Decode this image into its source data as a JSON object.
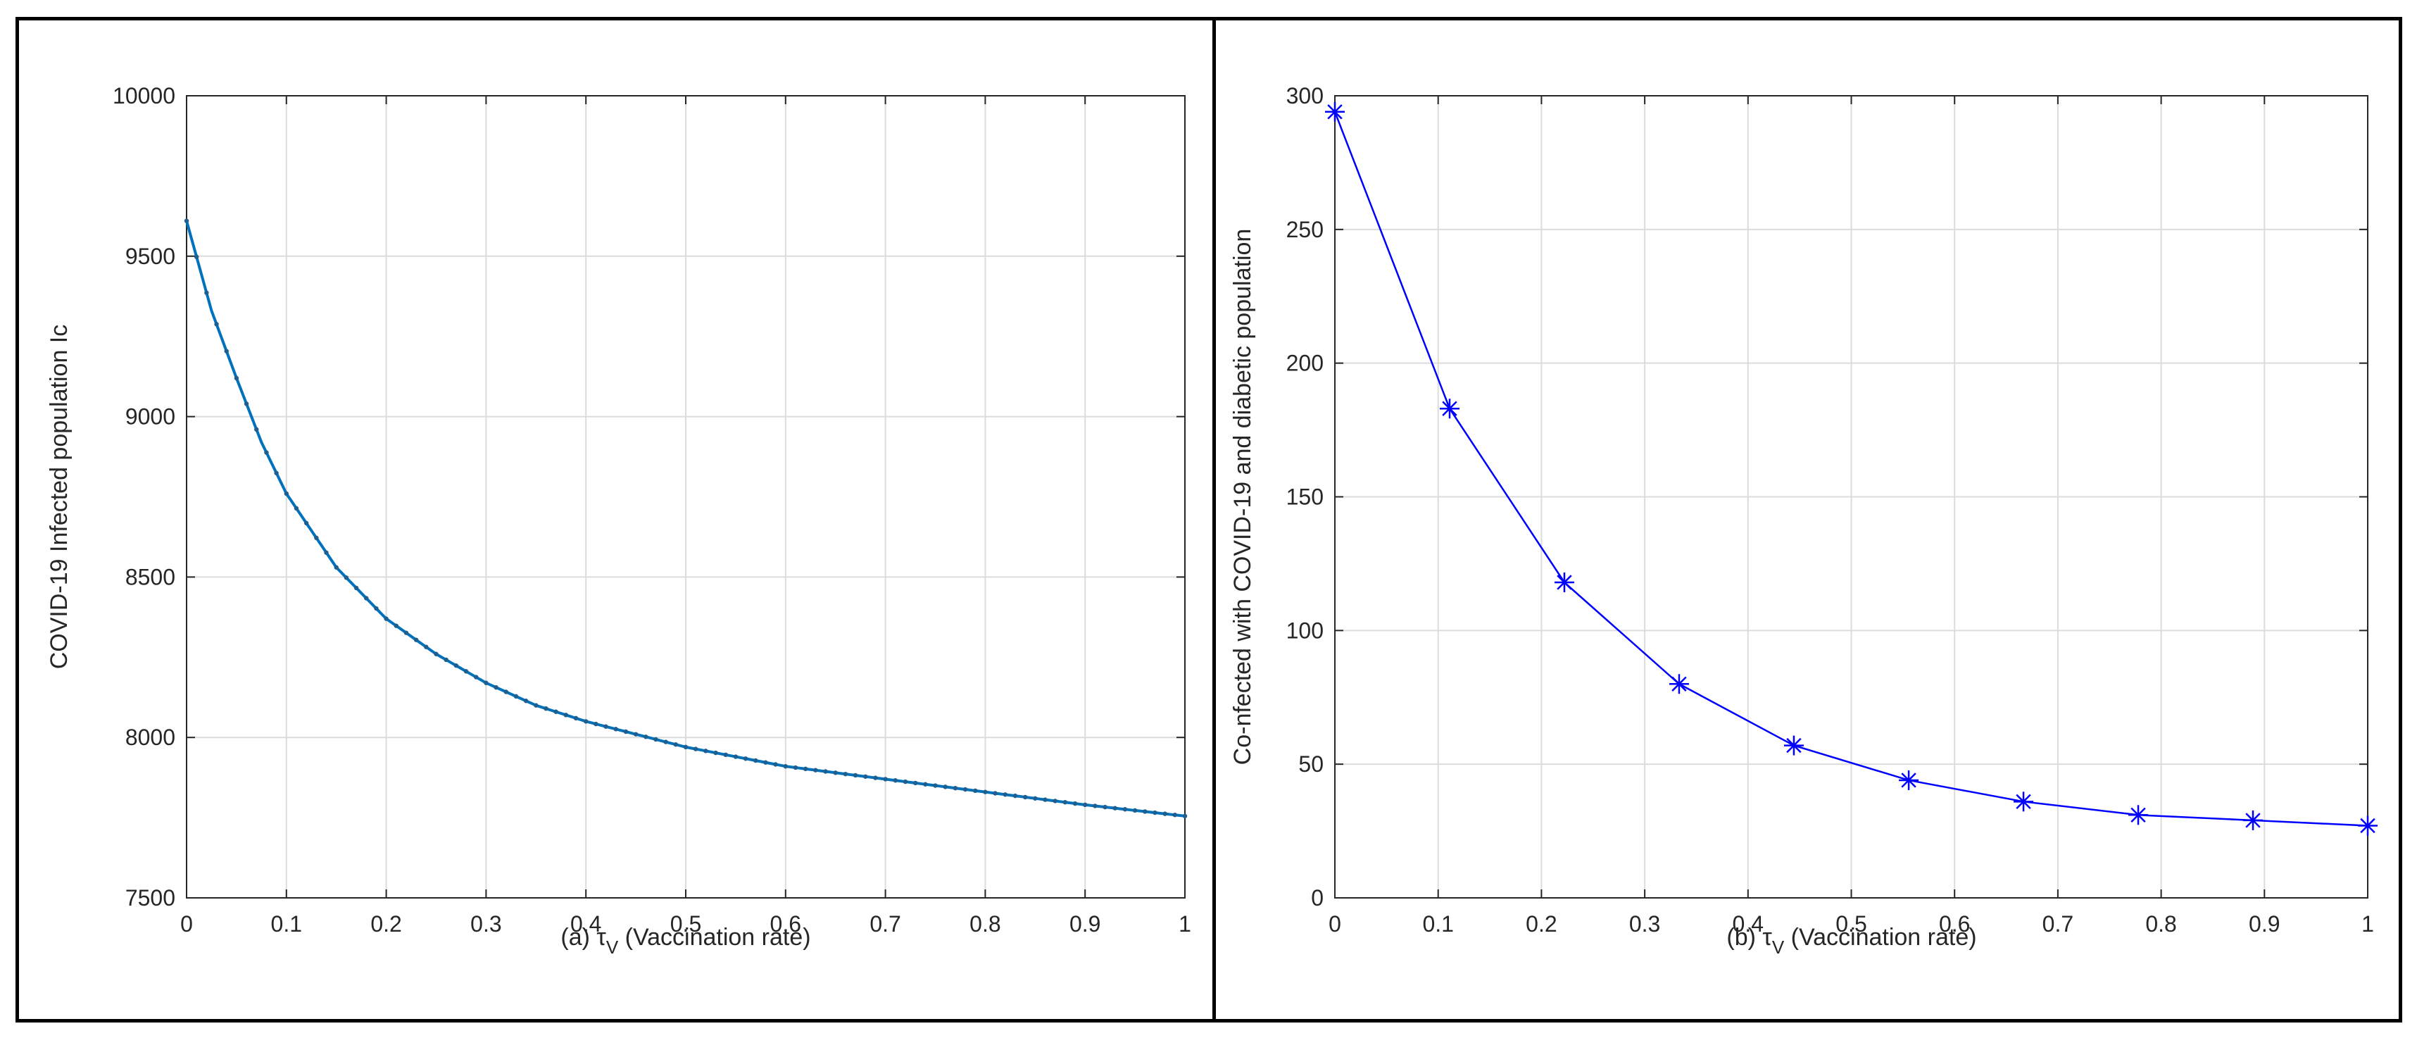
{
  "chart_data": [
    {
      "type": "line",
      "panel": "a",
      "xlabel_prefix": "(a) ",
      "xlabel_symbol": "τ",
      "xlabel_sub": "V",
      "xlabel_rest": " (Vaccination rate)",
      "ylabel": "COVID-19 Infected population Ic",
      "xlim": [
        0,
        1
      ],
      "ylim": [
        7500,
        10000
      ],
      "xticks": [
        0,
        0.1,
        0.2,
        0.3,
        0.4,
        0.5,
        0.6,
        0.7,
        0.8,
        0.9,
        1
      ],
      "xtick_labels": [
        "0",
        "0.1",
        "0.2",
        "0.3",
        "0.4",
        "0.5",
        "0.6",
        "0.7",
        "0.8",
        "0.9",
        "1"
      ],
      "yticks": [
        7500,
        8000,
        8500,
        9000,
        9500,
        10000
      ],
      "ytick_labels": [
        "7500",
        "8000",
        "8500",
        "9000",
        "9500",
        "10000"
      ],
      "grid": true,
      "series": [
        {
          "color": "#0072BD",
          "marker": "dot",
          "x": [
            0,
            0.025,
            0.05,
            0.075,
            0.1,
            0.15,
            0.2,
            0.25,
            0.3,
            0.35,
            0.4,
            0.5,
            0.6,
            0.7,
            0.8,
            0.9,
            1
          ],
          "y": [
            9610,
            9330,
            9120,
            8920,
            8760,
            8530,
            8370,
            8260,
            8170,
            8100,
            8050,
            7970,
            7910,
            7870,
            7830,
            7790,
            7755
          ]
        }
      ]
    },
    {
      "type": "line",
      "panel": "b",
      "xlabel_prefix": "(b) ",
      "xlabel_symbol": "τ",
      "xlabel_sub": "V",
      "xlabel_rest": " (Vaccination rate)",
      "ylabel": "Co-nfected with COVID-19 and diabetic population",
      "xlim": [
        0,
        1
      ],
      "ylim": [
        0,
        300
      ],
      "xticks": [
        0,
        0.1,
        0.2,
        0.3,
        0.4,
        0.5,
        0.6,
        0.7,
        0.8,
        0.9,
        1
      ],
      "xtick_labels": [
        "0",
        "0.1",
        "0.2",
        "0.3",
        "0.4",
        "0.5",
        "0.6",
        "0.7",
        "0.8",
        "0.9",
        "1"
      ],
      "yticks": [
        0,
        50,
        100,
        150,
        200,
        250,
        300
      ],
      "ytick_labels": [
        "0",
        "50",
        "100",
        "150",
        "200",
        "250",
        "300"
      ],
      "grid": true,
      "series": [
        {
          "color": "#0000FF",
          "marker": "asterisk",
          "x": [
            0,
            0.1111,
            0.2222,
            0.3333,
            0.4444,
            0.5556,
            0.6667,
            0.7778,
            0.8889,
            1
          ],
          "y": [
            294,
            183,
            118,
            80,
            57,
            44,
            36,
            31,
            29,
            27
          ]
        }
      ]
    }
  ]
}
